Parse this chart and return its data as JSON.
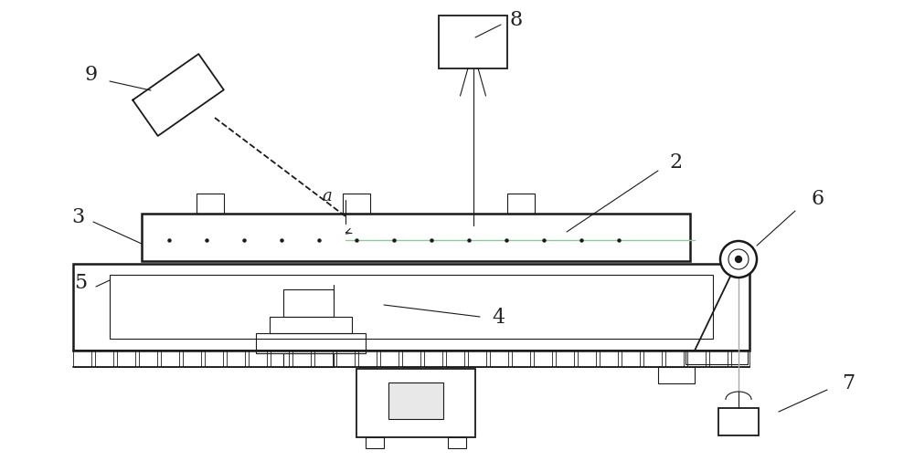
{
  "bg": "#ffffff",
  "lc": "#1a1a1a",
  "gray": "#aaaaaa",
  "green": "#90c8a0",
  "lw": 1.3,
  "lw_thin": 0.8,
  "lw_thick": 1.8,
  "fs": 16,
  "fw": 10.0,
  "fh": 5.06,
  "dpi": 100
}
